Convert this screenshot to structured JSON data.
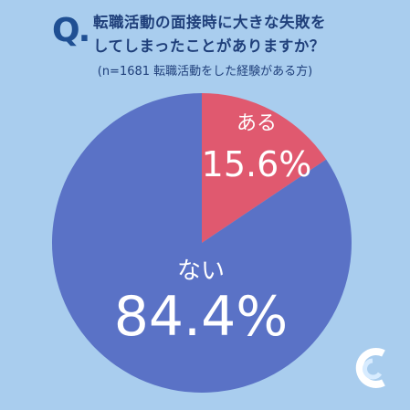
{
  "header": {
    "q_mark": "Q.",
    "question_line1": "転職活動の面接時に大きな失敗を",
    "question_line2": "してしまったことがありますか？",
    "sample_note": "(n=1681  転職活動をした経験がある方)"
  },
  "chart_data": {
    "type": "pie",
    "title": "転職活動の面接時に大きな失敗をしてしまったことがありますか？",
    "n": 1681,
    "slices": [
      {
        "label": "ある",
        "value": 15.6,
        "display": "15.6%",
        "color": "#e0596f"
      },
      {
        "label": "ない",
        "value": 84.4,
        "display": "84.4%",
        "color": "#5a72c6"
      }
    ],
    "start": "top",
    "direction": "clockwise"
  },
  "colors": {
    "background": "#a9cdee",
    "accent": "#1f4f93",
    "logo": "#ffffff"
  },
  "logo": {
    "icon": "brand-c-logo-icon"
  }
}
